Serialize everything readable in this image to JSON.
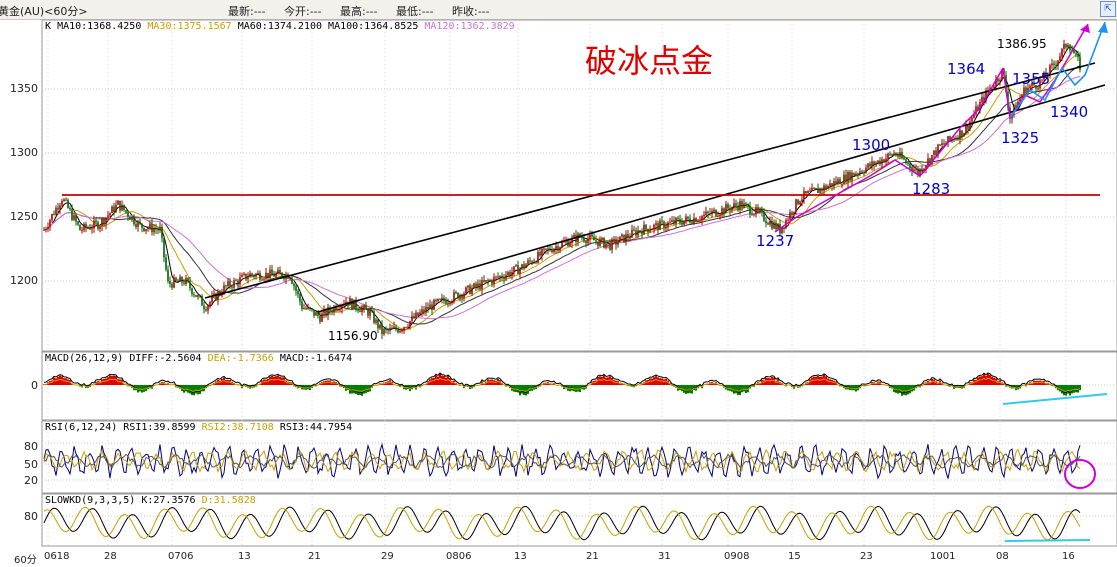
{
  "header": {
    "instrument": "黄金(AU)<60分>",
    "last": "最新:---",
    "open": "今开:---",
    "high": "最高:---",
    "low": "最低:---",
    "prev": "昨收:---"
  },
  "main_panel": {
    "k_label": "K",
    "ma10": "MA10:1368.4250",
    "ma30": "MA30:1375.1567",
    "ma60": "MA60:1374.2100",
    "ma100": "MA100:1364.8525",
    "ma120": "MA120:1362.3829",
    "annotation_title": "破冰点金",
    "y_ticks": [
      "1350",
      "1300",
      "1250",
      "1200"
    ],
    "price_labels": {
      "low_point": "1156.90",
      "p1237": "1237",
      "p1300": "1300",
      "p1283": "1283",
      "p1364": "1364",
      "p1355": "1355",
      "p1386": "1386.95",
      "p1325": "1325",
      "p1340": "1340"
    }
  },
  "macd_panel": {
    "label": "MACD(26,12,9)",
    "diff": "DIFF:-2.5604",
    "dea": "DEA:-1.7366",
    "macd": "MACD:-1.6474",
    "y_tick": "0"
  },
  "rsi_panel": {
    "label": "RSI(6,12,24)",
    "rsi1": "RSI1:39.8599",
    "rsi2": "RSI2:38.7108",
    "rsi3": "RSI3:44.7954",
    "y_ticks": [
      "80",
      "50",
      "20"
    ]
  },
  "kd_panel": {
    "label": "SLOWKD(9,3,3,5)",
    "k": "K:27.3576",
    "d": "D:31.5828",
    "y_tick": "80"
  },
  "x_axis": {
    "period": "60分",
    "dates": [
      "0618",
      "28",
      "0706",
      "13",
      "21",
      "29",
      "0806",
      "13",
      "21",
      "31",
      "0908",
      "15",
      "23",
      "1001",
      "08",
      "16"
    ]
  },
  "colors": {
    "candle_up": "#b00000",
    "candle_down": "#006400",
    "ma_yellow": "#c9a000",
    "ma_pink": "#d070d8",
    "annotation_red": "#e00000",
    "annotation_blue": "#0000cc",
    "trend_magenta": "#d000d0",
    "trend_blue": "#1e90ff",
    "cyan": "#33c8f0"
  }
}
